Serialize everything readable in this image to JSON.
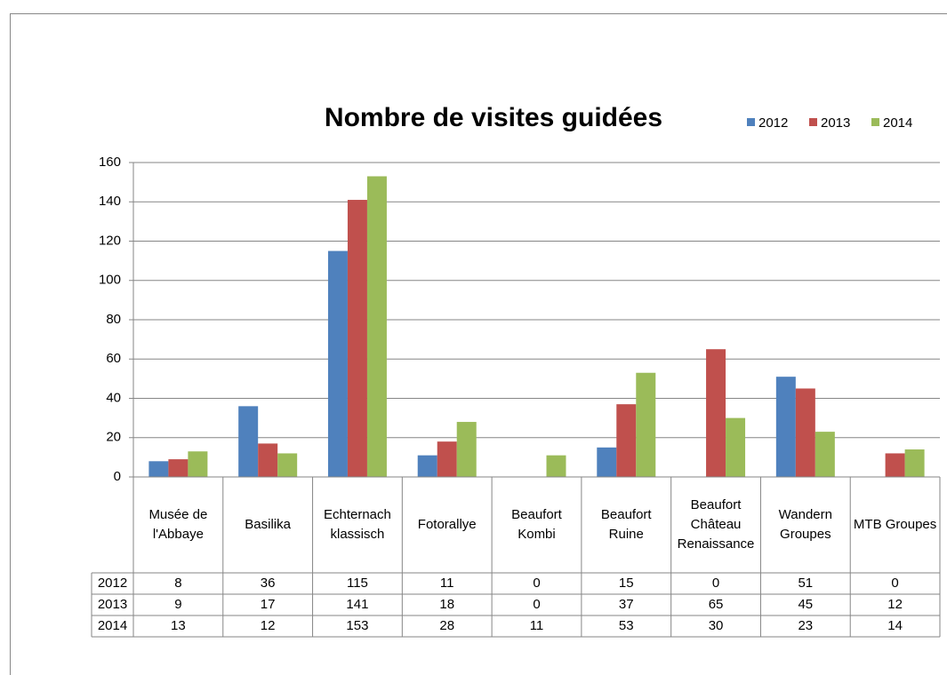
{
  "chart_data": {
    "type": "bar",
    "title": "Nombre de visites guidées",
    "categories": [
      "Musée de l'Abbaye",
      "Basilika",
      "Echternach klassisch",
      "Fotorallye",
      "Beaufort Kombi",
      "Beaufort Ruine",
      "Beaufort Château Renaissance",
      "Wandern Groupes",
      "MTB Groupes"
    ],
    "series": [
      {
        "name": "2012",
        "color": "#4f81bd",
        "values": [
          8,
          36,
          115,
          11,
          0,
          15,
          0,
          51,
          0
        ]
      },
      {
        "name": "2013",
        "color": "#c0504d",
        "values": [
          9,
          17,
          141,
          18,
          0,
          37,
          65,
          45,
          12
        ]
      },
      {
        "name": "2014",
        "color": "#9bbb59",
        "values": [
          13,
          12,
          153,
          28,
          11,
          53,
          30,
          23,
          14
        ]
      }
    ],
    "ylim": [
      0,
      160
    ],
    "yticks": [
      0,
      20,
      40,
      60,
      80,
      100,
      120,
      140,
      160
    ],
    "grid": true,
    "legend": "top-right"
  }
}
